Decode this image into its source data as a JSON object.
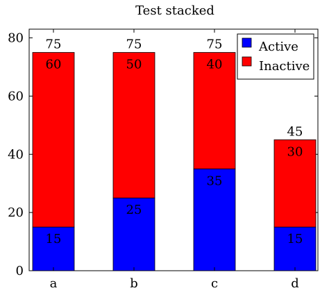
{
  "chart_data": {
    "type": "bar",
    "stacked": true,
    "title": "Test stacked",
    "xlabel": "",
    "ylabel": "",
    "categories": [
      "a",
      "b",
      "c",
      "d"
    ],
    "series": [
      {
        "name": "Active",
        "values": [
          15,
          25,
          35,
          15
        ],
        "color": "#0000ff"
      },
      {
        "name": "Inactive",
        "values": [
          60,
          50,
          40,
          30
        ],
        "color": "#ff0000"
      }
    ],
    "totals": [
      75,
      75,
      75,
      45
    ],
    "ylim": [
      0,
      83
    ],
    "yticks": [
      0,
      20,
      40,
      60,
      80
    ],
    "grid": false,
    "legend": {
      "position": "top-right"
    }
  }
}
